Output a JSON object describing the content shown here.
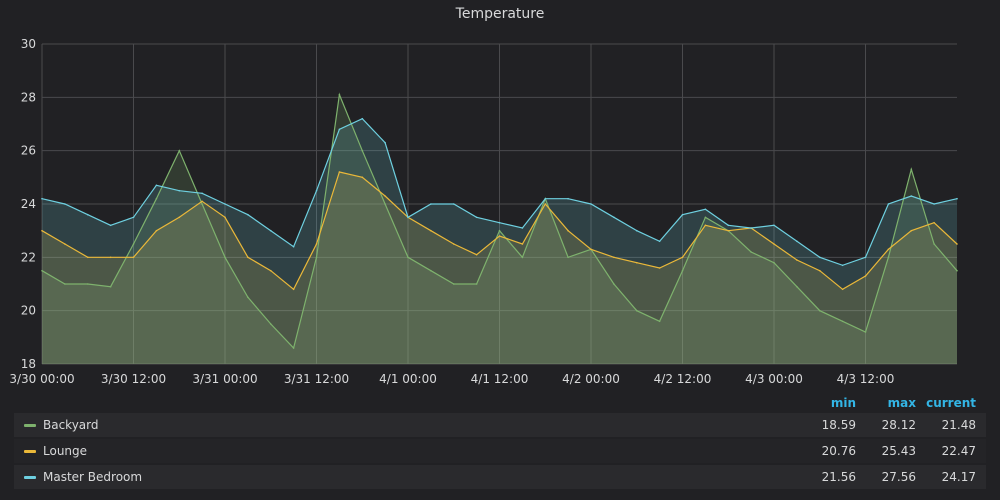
{
  "panel": {
    "title": "Temperature"
  },
  "legend": {
    "headers": {
      "min": "min",
      "max": "max",
      "current": "current"
    },
    "rows": [
      {
        "name": "Backyard",
        "color": "#7eb26d",
        "min": "18.59",
        "max": "28.12",
        "current": "21.48"
      },
      {
        "name": "Lounge",
        "color": "#eab839",
        "min": "20.76",
        "max": "25.43",
        "current": "22.47"
      },
      {
        "name": "Master Bedroom",
        "color": "#6ed0e0",
        "min": "21.56",
        "max": "27.56",
        "current": "24.17"
      }
    ]
  },
  "chart_data": {
    "type": "area",
    "title": "Temperature",
    "xlabel": "",
    "ylabel": "",
    "ylim": [
      18,
      30
    ],
    "yticks": [
      "18",
      "20",
      "22",
      "24",
      "26",
      "28",
      "30"
    ],
    "xticks": [
      "3/30 00:00",
      "3/30 12:00",
      "3/31 00:00",
      "3/31 12:00",
      "4/1 00:00",
      "4/1 12:00",
      "4/2 00:00",
      "4/2 12:00",
      "4/3 00:00",
      "4/3 12:00"
    ],
    "xlim_hours": [
      0,
      120
    ],
    "grid": true,
    "legend_position": "bottom",
    "x_hours": [
      0,
      3,
      6,
      9,
      12,
      15,
      18,
      21,
      24,
      27,
      30,
      33,
      36,
      39,
      42,
      45,
      48,
      51,
      54,
      57,
      60,
      63,
      66,
      69,
      72,
      75,
      78,
      81,
      84,
      87,
      90,
      93,
      96,
      99,
      102,
      105,
      108,
      111,
      114,
      117,
      120
    ],
    "series": [
      {
        "name": "Backyard",
        "color": "#7eb26d",
        "values": [
          21.5,
          21.0,
          21.0,
          20.9,
          22.5,
          24.2,
          26.0,
          24.0,
          22.0,
          20.5,
          19.5,
          18.6,
          22.0,
          28.1,
          26.0,
          24.0,
          22.0,
          21.5,
          21.0,
          21.0,
          23.0,
          22.0,
          24.2,
          22.0,
          22.3,
          21.0,
          20.0,
          19.6,
          21.5,
          23.5,
          23.0,
          22.2,
          21.8,
          20.9,
          20.0,
          19.6,
          19.2,
          22.0,
          25.3,
          22.5,
          21.5
        ]
      },
      {
        "name": "Lounge",
        "color": "#eab839",
        "values": [
          23.0,
          22.5,
          22.0,
          22.0,
          22.0,
          23.0,
          23.5,
          24.1,
          23.5,
          22.0,
          21.5,
          20.8,
          22.5,
          25.2,
          25.0,
          24.3,
          23.5,
          23.0,
          22.5,
          22.1,
          22.8,
          22.5,
          24.0,
          23.0,
          22.3,
          22.0,
          21.8,
          21.6,
          22.0,
          23.2,
          23.0,
          23.1,
          22.5,
          21.9,
          21.5,
          20.8,
          21.3,
          22.3,
          23.0,
          23.3,
          22.5
        ]
      },
      {
        "name": "Master Bedroom",
        "color": "#6ed0e0",
        "values": [
          24.2,
          24.0,
          23.6,
          23.2,
          23.5,
          24.7,
          24.5,
          24.4,
          24.0,
          23.6,
          23.0,
          22.4,
          24.5,
          26.8,
          27.2,
          26.3,
          23.5,
          24.0,
          24.0,
          23.5,
          23.3,
          23.1,
          24.2,
          24.2,
          24.0,
          23.5,
          23.0,
          22.6,
          23.6,
          23.8,
          23.2,
          23.1,
          23.2,
          22.6,
          22.0,
          21.7,
          22.0,
          24.0,
          24.3,
          24.0,
          24.2
        ]
      }
    ]
  }
}
